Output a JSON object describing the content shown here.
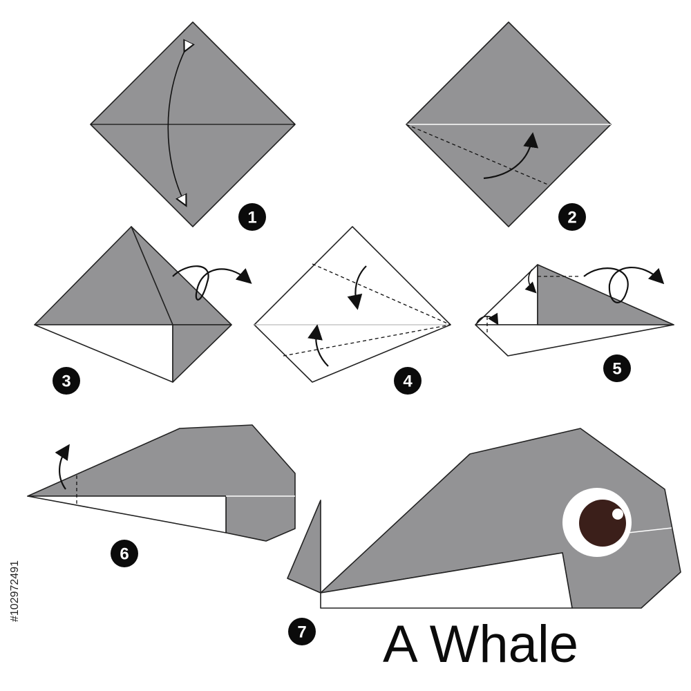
{
  "title": "A Whale",
  "stock_id": "#102972491",
  "steps": [
    {
      "number": "1"
    },
    {
      "number": "2"
    },
    {
      "number": "3"
    },
    {
      "number": "4"
    },
    {
      "number": "5"
    },
    {
      "number": "6"
    },
    {
      "number": "7"
    }
  ],
  "colors": {
    "paper": "#939395",
    "paper_back": "#ffffff",
    "outline": "#222222",
    "eye_iris": "#3b1f1a",
    "badge": "#0b0b0b"
  }
}
